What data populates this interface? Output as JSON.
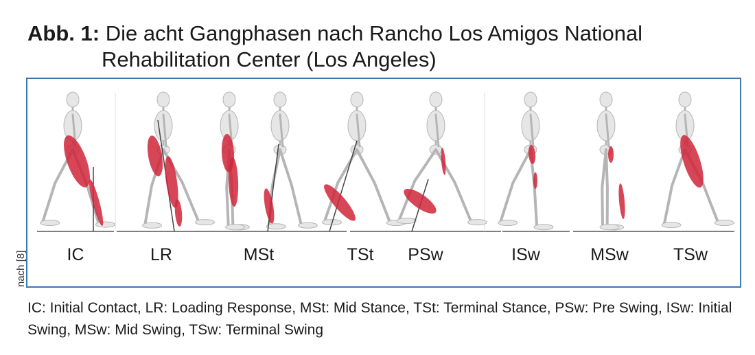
{
  "title": {
    "label": "Abb. 1:",
    "line1": "Die acht Gangphasen nach Rancho Los Amigos National",
    "line2": "Rehabilitation Center (Los Angeles)"
  },
  "source_note": "nach [8]",
  "phases": [
    {
      "abbr": "IC"
    },
    {
      "abbr": "LR"
    },
    {
      "abbr": "MSt"
    },
    {
      "abbr": "TSt"
    },
    {
      "abbr": "PSw"
    },
    {
      "abbr": "ISw"
    },
    {
      "abbr": "MSw"
    },
    {
      "abbr": "TSw"
    }
  ],
  "caption": "IC: Initial Contact, LR: Loading Response, MSt: Mid Stance, TSt: Terminal Stance, PSw: Pre Swing, ISw: Initial Swing, MSw: Mid Swing, TSw: Terminal Swing",
  "colors": {
    "frame_border": "#3a78b5",
    "muscle": "#d0263a",
    "bone": "#e6e6e6",
    "bone_outline": "#b5b5b5"
  },
  "icons": [
    "skeleton-walking-figure"
  ]
}
